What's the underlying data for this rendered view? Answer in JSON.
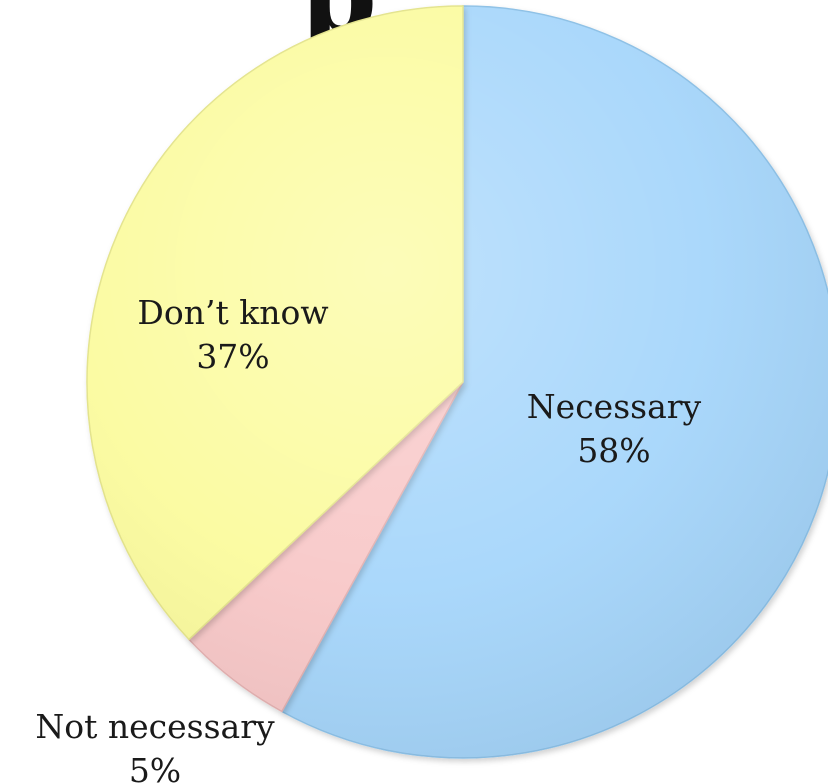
{
  "title_fragment": "p",
  "chart_data": {
    "type": "pie",
    "start_angle_deg": 0,
    "direction": "clockwise",
    "slices": [
      {
        "label": "Necessary",
        "value": 58,
        "value_label": "58%",
        "color": "#a6d6fb",
        "edge": "#8cc0e6"
      },
      {
        "label": "Not necessary",
        "value": 5,
        "value_label": "5%",
        "color": "#f8c8c8",
        "edge": "#e2b0b0"
      },
      {
        "label": "Don’t know",
        "value": 37,
        "value_label": "37%",
        "color": "#fbfb9e",
        "edge": "#e3e38a"
      }
    ]
  }
}
